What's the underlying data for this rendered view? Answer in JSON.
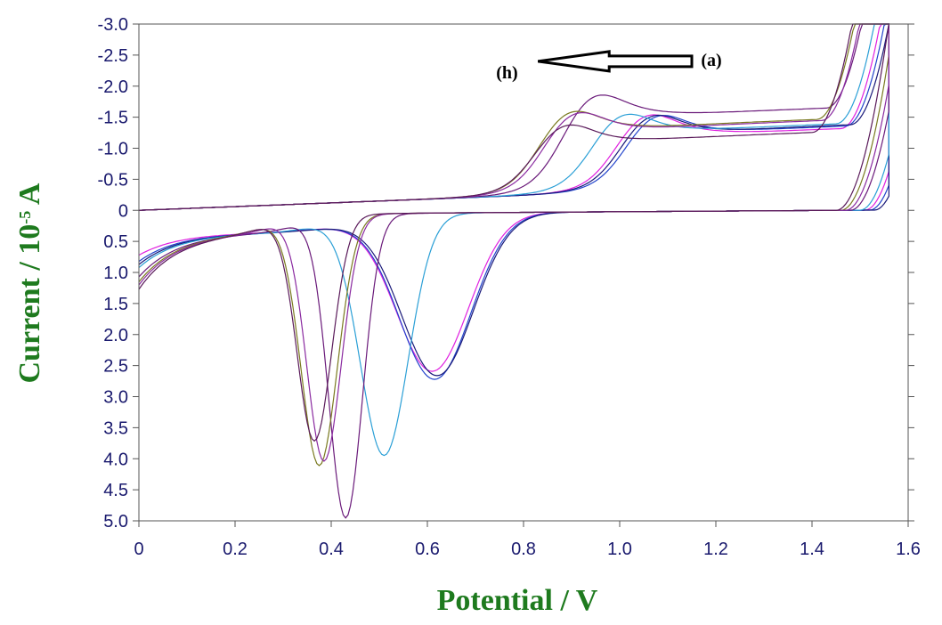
{
  "chart_data": {
    "type": "line",
    "xlabel": "Potential / V",
    "ylabel_main": "Current / 10",
    "ylabel_exp": "-5",
    "ylabel_unit": " A",
    "xlim": [
      0,
      1.6
    ],
    "ylim": [
      -3.0,
      5.0
    ],
    "y_axis_inverted": true,
    "grid": false,
    "x_ticks": [
      0,
      0.2,
      0.4,
      0.6,
      0.8,
      1.0,
      1.2,
      1.4,
      1.6
    ],
    "x_tick_labels": [
      "0",
      "0.2",
      "0.4",
      "0.6",
      "0.8",
      "1.0",
      "1.2",
      "1.4",
      "1.6"
    ],
    "y_ticks": [
      -3.0,
      -2.5,
      -2.0,
      -1.5,
      -1.0,
      -0.5,
      0,
      0.5,
      1.0,
      1.5,
      2.0,
      2.5,
      3.0,
      3.5,
      4.0,
      4.5,
      5.0
    ],
    "y_tick_labels": [
      "-3.0",
      "-2.5",
      "-2.0",
      "-1.5",
      "-1.0",
      "-0.5",
      "0",
      "0.5",
      "1.0",
      "1.5",
      "2.0",
      "2.5",
      "3.0",
      "3.5",
      "4.0",
      "4.5",
      "5.0"
    ],
    "annotations": [
      {
        "text": "(h)",
        "x": 0.78,
        "y": -2.3
      },
      {
        "text": "(a)",
        "x": 1.16,
        "y": -2.4
      }
    ],
    "arrow": {
      "from": [
        1.15,
        -2.4
      ],
      "to": [
        0.83,
        -2.4
      ]
    },
    "series": [
      {
        "color": "#e020e0",
        "ox": 0.61,
        "oh": 2.55,
        "ow": 0.075,
        "rx": 1.05,
        "rh": 1.45,
        "rp": 1.23,
        "rpv": 1.2,
        "start": 0.35,
        "rise": 1.46
      },
      {
        "color": "#2244cc",
        "ox": 0.615,
        "oh": 2.68,
        "ow": 0.075,
        "rx": 1.07,
        "rh": 1.4,
        "rp": 1.15,
        "rpv": 1.35,
        "start": 0.45,
        "rise": 1.47
      },
      {
        "color": "#1a1a7a",
        "ox": 0.62,
        "oh": 2.62,
        "ow": 0.075,
        "rx": 1.06,
        "rh": 1.42,
        "rp": 1.2,
        "rpv": 1.38,
        "start": 0.5,
        "rise": 1.48
      },
      {
        "color": "#2a9fd6",
        "ox": 0.51,
        "oh": 3.9,
        "ow": 0.05,
        "rx": 1.0,
        "rh": 1.45,
        "rp": 1.1,
        "rpv": 1.4,
        "start": 0.55,
        "rise": 1.45
      },
      {
        "color": "#6a1a7a",
        "ox": 0.43,
        "oh": 4.9,
        "ow": 0.035,
        "rx": 0.94,
        "rh": 1.85,
        "rp": 1.08,
        "rpv": 1.62,
        "start": 0.7,
        "rise": 1.43
      },
      {
        "color": "#7a7a20",
        "ox": 0.375,
        "oh": 4.05,
        "ow": 0.038,
        "rx": 0.89,
        "rh": 1.55,
        "rp": 1.02,
        "rpv": 1.5,
        "start": 0.78,
        "rise": 1.41
      },
      {
        "color": "#8a2aa0",
        "ox": 0.385,
        "oh": 3.98,
        "ow": 0.036,
        "rx": 0.9,
        "rh": 1.52,
        "rp": 1.03,
        "rpv": 1.48,
        "start": 0.83,
        "rise": 1.42
      },
      {
        "color": "#5a1a5a",
        "ox": 0.365,
        "oh": 3.65,
        "ow": 0.036,
        "rx": 0.88,
        "rh": 1.3,
        "rp": 1.0,
        "rpv": 1.25,
        "start": 0.9,
        "rise": 1.4
      }
    ]
  }
}
